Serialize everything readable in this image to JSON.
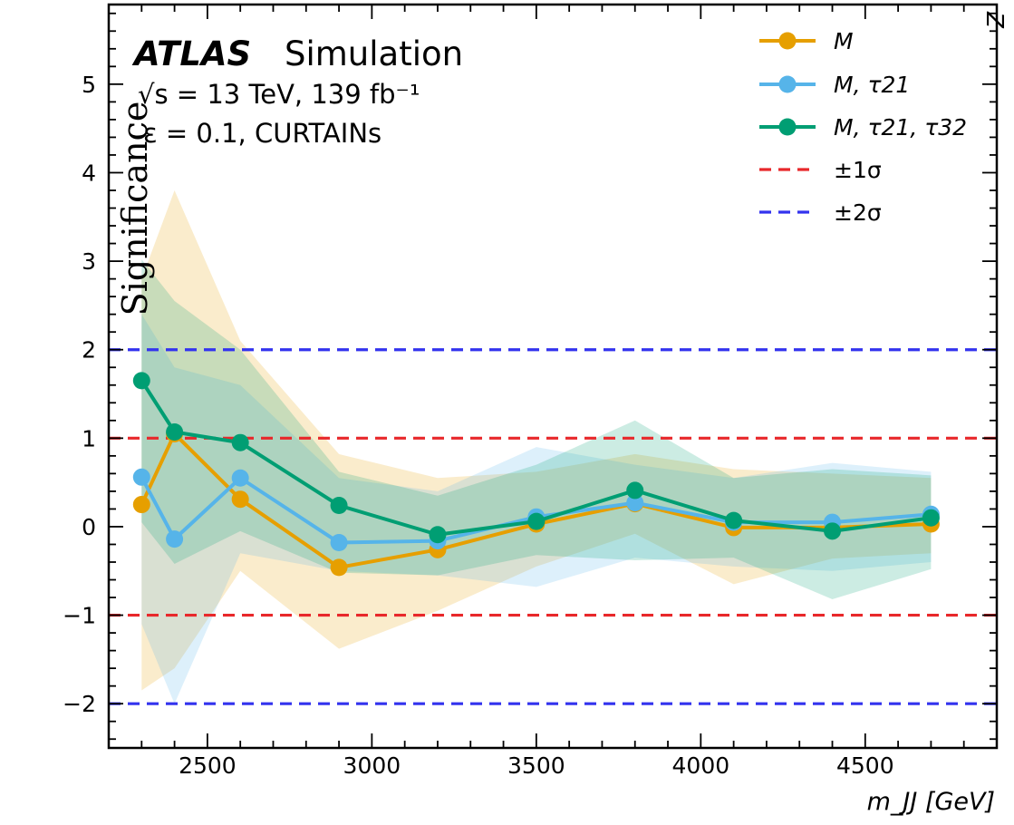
{
  "chart_data": {
    "type": "line",
    "title": "ATLAS",
    "title_suffix": "Simulation",
    "subtitle": "√s = 13 TeV, 139 fb⁻¹",
    "annotation": "ε = 0.1, CURTAINs",
    "xlabel": "m_JJ [GeV]",
    "ylabel": "Significance",
    "y_right_label": "Z",
    "xlim": [
      2200,
      4900
    ],
    "ylim": [
      -2.5,
      5.9
    ],
    "x_ticks": [
      2500,
      3000,
      3500,
      4000,
      4500
    ],
    "y_ticks": [
      -2,
      -1,
      0,
      1,
      2,
      3,
      4,
      5
    ],
    "x": [
      2300,
      2400,
      2600,
      2900,
      3200,
      3500,
      3800,
      4100,
      4400,
      4700
    ],
    "legend_position": "top-right",
    "series": [
      {
        "name": "M",
        "color": "#E69F00",
        "values": [
          0.25,
          1.05,
          0.31,
          -0.46,
          -0.26,
          0.03,
          0.26,
          -0.01,
          -0.01,
          0.03
        ],
        "band_upper": [
          2.8,
          3.8,
          2.1,
          0.82,
          0.55,
          0.62,
          0.82,
          0.65,
          0.6,
          0.55
        ],
        "band_lower": [
          -1.85,
          -1.6,
          -0.5,
          -1.38,
          -0.95,
          -0.45,
          -0.08,
          -0.65,
          -0.36,
          -0.3
        ]
      },
      {
        "name": "M, τ21",
        "color": "#56B4E9",
        "values": [
          0.56,
          -0.14,
          0.55,
          -0.18,
          -0.16,
          0.11,
          0.27,
          0.05,
          0.05,
          0.14
        ],
        "band_upper": [
          2.4,
          1.8,
          1.6,
          0.55,
          0.4,
          0.9,
          0.7,
          0.55,
          0.72,
          0.62
        ],
        "band_lower": [
          -1.1,
          -2.0,
          -0.3,
          -0.5,
          -0.55,
          -0.68,
          -0.35,
          -0.45,
          -0.5,
          -0.4
        ]
      },
      {
        "name": "M, τ21, τ32",
        "color": "#009E73",
        "values": [
          1.65,
          1.07,
          0.95,
          0.24,
          -0.09,
          0.06,
          0.41,
          0.07,
          -0.05,
          0.1
        ],
        "band_upper": [
          3.02,
          2.55,
          2.0,
          0.62,
          0.35,
          0.7,
          1.2,
          0.55,
          0.65,
          0.58
        ],
        "band_lower": [
          0.05,
          -0.42,
          -0.05,
          -0.52,
          -0.55,
          -0.32,
          -0.38,
          -0.35,
          -0.82,
          -0.48
        ]
      }
    ],
    "reference_lines": [
      {
        "name": "±1σ",
        "color": "#E8282B",
        "values": [
          1,
          -1
        ]
      },
      {
        "name": "±2σ",
        "color": "#3333EE",
        "values": [
          2,
          -2
        ]
      }
    ]
  }
}
